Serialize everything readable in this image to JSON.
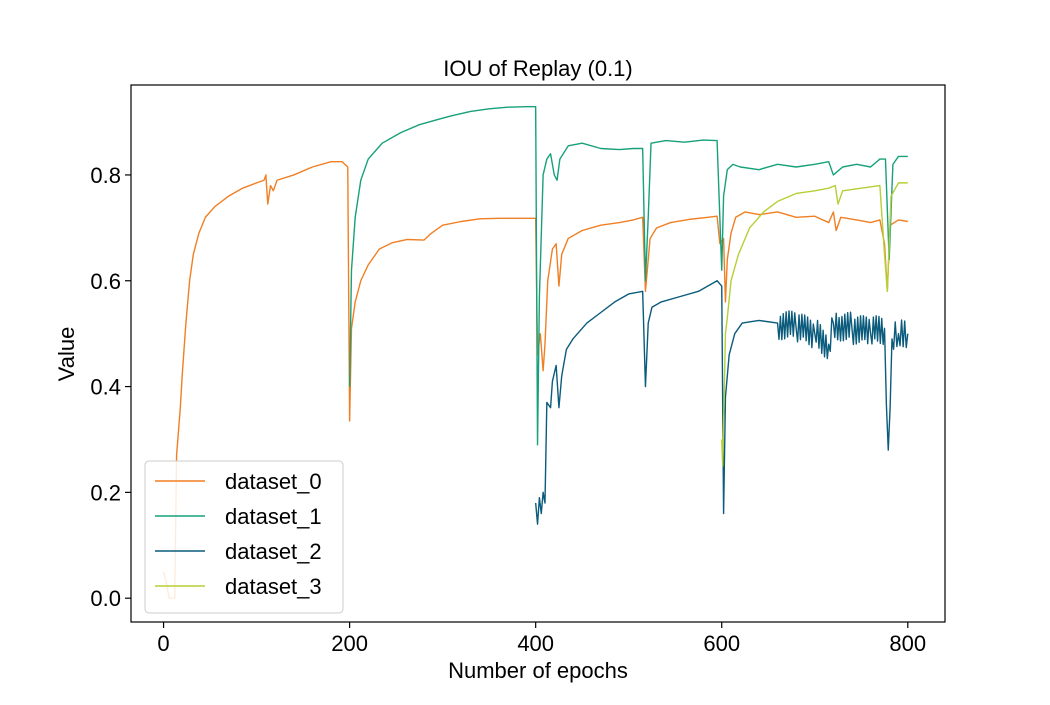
{
  "chart_data": {
    "type": "line",
    "title": "IOU of Replay (0.1)",
    "xlabel": "Number of epochs",
    "ylabel": "Value",
    "xlim": [
      -35,
      840
    ],
    "ylim": [
      -0.045,
      0.97
    ],
    "xticks": [
      0,
      200,
      400,
      600,
      800
    ],
    "yticks": [
      0.0,
      0.2,
      0.4,
      0.6,
      0.8
    ],
    "xtick_labels": [
      "0",
      "200",
      "400",
      "600",
      "800"
    ],
    "ytick_labels": [
      "0.0",
      "0.2",
      "0.4",
      "0.6",
      "0.8"
    ],
    "grid": false,
    "legend_position": "lower-left",
    "series": [
      {
        "name": "dataset_0",
        "color": "#f07f24",
        "points": [
          [
            0,
            0.05
          ],
          [
            3,
            0.03
          ],
          [
            6,
            0.0
          ],
          [
            9,
            0.0
          ],
          [
            12,
            0.0
          ],
          [
            14,
            0.27
          ],
          [
            18,
            0.36
          ],
          [
            20,
            0.42
          ],
          [
            24,
            0.52
          ],
          [
            28,
            0.6
          ],
          [
            32,
            0.65
          ],
          [
            38,
            0.69
          ],
          [
            45,
            0.72
          ],
          [
            55,
            0.74
          ],
          [
            70,
            0.76
          ],
          [
            85,
            0.775
          ],
          [
            100,
            0.785
          ],
          [
            108,
            0.79
          ],
          [
            110,
            0.8
          ],
          [
            112,
            0.745
          ],
          [
            115,
            0.78
          ],
          [
            118,
            0.77
          ],
          [
            122,
            0.79
          ],
          [
            140,
            0.8
          ],
          [
            160,
            0.815
          ],
          [
            180,
            0.825
          ],
          [
            192,
            0.825
          ],
          [
            198,
            0.815
          ],
          [
            200,
            0.335
          ],
          [
            202,
            0.51
          ],
          [
            206,
            0.56
          ],
          [
            212,
            0.6
          ],
          [
            220,
            0.63
          ],
          [
            232,
            0.66
          ],
          [
            246,
            0.672
          ],
          [
            262,
            0.678
          ],
          [
            280,
            0.677
          ],
          [
            288,
            0.69
          ],
          [
            300,
            0.705
          ],
          [
            320,
            0.712
          ],
          [
            340,
            0.717
          ],
          [
            360,
            0.718
          ],
          [
            380,
            0.718
          ],
          [
            400,
            0.718
          ],
          [
            402,
            0.46
          ],
          [
            405,
            0.5
          ],
          [
            408,
            0.43
          ],
          [
            410,
            0.48
          ],
          [
            413,
            0.6
          ],
          [
            418,
            0.66
          ],
          [
            422,
            0.67
          ],
          [
            425,
            0.59
          ],
          [
            428,
            0.65
          ],
          [
            435,
            0.68
          ],
          [
            450,
            0.695
          ],
          [
            470,
            0.705
          ],
          [
            490,
            0.71
          ],
          [
            505,
            0.715
          ],
          [
            515,
            0.72
          ],
          [
            518,
            0.58
          ],
          [
            520,
            0.62
          ],
          [
            523,
            0.68
          ],
          [
            530,
            0.7
          ],
          [
            545,
            0.71
          ],
          [
            565,
            0.716
          ],
          [
            585,
            0.72
          ],
          [
            595,
            0.722
          ],
          [
            598,
            0.67
          ],
          [
            602,
            0.68
          ],
          [
            604,
            0.56
          ],
          [
            606,
            0.64
          ],
          [
            610,
            0.69
          ],
          [
            615,
            0.72
          ],
          [
            625,
            0.73
          ],
          [
            640,
            0.725
          ],
          [
            660,
            0.73
          ],
          [
            680,
            0.72
          ],
          [
            700,
            0.722
          ],
          [
            715,
            0.71
          ],
          [
            720,
            0.73
          ],
          [
            723,
            0.695
          ],
          [
            728,
            0.72
          ],
          [
            745,
            0.715
          ],
          [
            760,
            0.71
          ],
          [
            770,
            0.715
          ],
          [
            775,
            0.67
          ],
          [
            778,
            0.58
          ],
          [
            781,
            0.705
          ],
          [
            790,
            0.715
          ],
          [
            800,
            0.712
          ]
        ]
      },
      {
        "name": "dataset_1",
        "color": "#17a07a",
        "points": [
          [
            200,
            0.4
          ],
          [
            202,
            0.62
          ],
          [
            206,
            0.72
          ],
          [
            212,
            0.79
          ],
          [
            220,
            0.83
          ],
          [
            235,
            0.86
          ],
          [
            255,
            0.88
          ],
          [
            275,
            0.895
          ],
          [
            295,
            0.905
          ],
          [
            310,
            0.912
          ],
          [
            330,
            0.92
          ],
          [
            350,
            0.925
          ],
          [
            370,
            0.928
          ],
          [
            390,
            0.929
          ],
          [
            400,
            0.929
          ],
          [
            402,
            0.29
          ],
          [
            404,
            0.57
          ],
          [
            408,
            0.8
          ],
          [
            412,
            0.83
          ],
          [
            416,
            0.84
          ],
          [
            420,
            0.8
          ],
          [
            423,
            0.79
          ],
          [
            426,
            0.83
          ],
          [
            435,
            0.855
          ],
          [
            450,
            0.86
          ],
          [
            470,
            0.85
          ],
          [
            490,
            0.848
          ],
          [
            505,
            0.85
          ],
          [
            515,
            0.85
          ],
          [
            518,
            0.6
          ],
          [
            521,
            0.72
          ],
          [
            524,
            0.86
          ],
          [
            540,
            0.865
          ],
          [
            560,
            0.862
          ],
          [
            580,
            0.866
          ],
          [
            595,
            0.865
          ],
          [
            600,
            0.62
          ],
          [
            602,
            0.76
          ],
          [
            606,
            0.81
          ],
          [
            612,
            0.82
          ],
          [
            620,
            0.815
          ],
          [
            640,
            0.81
          ],
          [
            660,
            0.82
          ],
          [
            680,
            0.815
          ],
          [
            700,
            0.82
          ],
          [
            715,
            0.825
          ],
          [
            720,
            0.8
          ],
          [
            730,
            0.815
          ],
          [
            745,
            0.82
          ],
          [
            760,
            0.815
          ],
          [
            770,
            0.83
          ],
          [
            776,
            0.83
          ],
          [
            780,
            0.64
          ],
          [
            784,
            0.82
          ],
          [
            790,
            0.835
          ],
          [
            800,
            0.835
          ]
        ]
      },
      {
        "name": "dataset_2",
        "color": "#0b5b7c",
        "points": [
          [
            400,
            0.18
          ],
          [
            402,
            0.14
          ],
          [
            404,
            0.19
          ],
          [
            406,
            0.16
          ],
          [
            408,
            0.2
          ],
          [
            410,
            0.18
          ],
          [
            412,
            0.37
          ],
          [
            416,
            0.36
          ],
          [
            418,
            0.41
          ],
          [
            422,
            0.44
          ],
          [
            425,
            0.36
          ],
          [
            428,
            0.42
          ],
          [
            433,
            0.47
          ],
          [
            440,
            0.49
          ],
          [
            455,
            0.52
          ],
          [
            470,
            0.54
          ],
          [
            485,
            0.56
          ],
          [
            500,
            0.575
          ],
          [
            515,
            0.58
          ],
          [
            518,
            0.4
          ],
          [
            521,
            0.52
          ],
          [
            525,
            0.55
          ],
          [
            535,
            0.56
          ],
          [
            555,
            0.57
          ],
          [
            575,
            0.58
          ],
          [
            595,
            0.6
          ],
          [
            600,
            0.59
          ],
          [
            602,
            0.16
          ],
          [
            604,
            0.38
          ],
          [
            608,
            0.46
          ],
          [
            614,
            0.5
          ],
          [
            622,
            0.52
          ],
          [
            640,
            0.525
          ],
          [
            660,
            0.52
          ],
          [
            680,
            0.51
          ],
          [
            700,
            0.5
          ],
          [
            715,
            0.48
          ],
          [
            720,
            0.52
          ],
          [
            740,
            0.51
          ],
          [
            760,
            0.5
          ],
          [
            775,
            0.51
          ],
          [
            779,
            0.28
          ],
          [
            783,
            0.49
          ],
          [
            790,
            0.5
          ],
          [
            800,
            0.5
          ]
        ],
        "jitter_from_epoch": 645,
        "jitter_amplitude": 0.03
      },
      {
        "name": "dataset_3",
        "color": "#b5cf36",
        "points": [
          [
            600,
            0.3
          ],
          [
            601,
            0.25
          ],
          [
            604,
            0.5
          ],
          [
            606,
            0.53
          ],
          [
            610,
            0.6
          ],
          [
            618,
            0.65
          ],
          [
            630,
            0.7
          ],
          [
            645,
            0.73
          ],
          [
            660,
            0.75
          ],
          [
            680,
            0.765
          ],
          [
            700,
            0.77
          ],
          [
            715,
            0.775
          ],
          [
            722,
            0.78
          ],
          [
            725,
            0.745
          ],
          [
            730,
            0.77
          ],
          [
            750,
            0.775
          ],
          [
            770,
            0.78
          ],
          [
            775,
            0.65
          ],
          [
            778,
            0.58
          ],
          [
            782,
            0.76
          ],
          [
            790,
            0.785
          ],
          [
            800,
            0.785
          ]
        ]
      }
    ]
  }
}
